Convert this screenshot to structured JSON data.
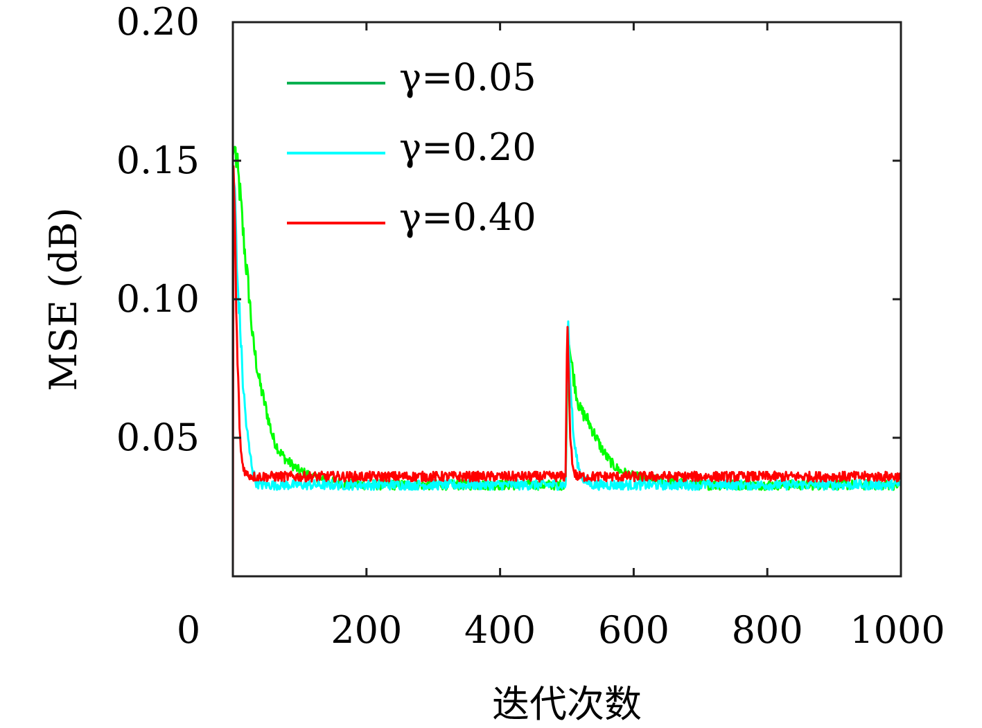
{
  "chart_data": {
    "type": "line",
    "title": "",
    "xlabel": "迭代次数",
    "ylabel": "MSE (dB)",
    "xlim": [
      0,
      1000
    ],
    "ylim": [
      0,
      0.2
    ],
    "xticks": [
      0,
      200,
      400,
      600,
      800,
      1000
    ],
    "xtick_labels": [
      "0",
      "200",
      "400",
      "600",
      "800",
      "1000"
    ],
    "yticks": [
      0.05,
      0.1,
      0.15,
      0.2
    ],
    "ytick_labels": [
      "0.05",
      "0.10",
      "0.15",
      "0.20"
    ],
    "grid": false,
    "legend_position": "top-left",
    "series": [
      {
        "name": "γ=0.05",
        "color": "#00ff00",
        "legend_color": "#00b050",
        "x": [
          0,
          3,
          6,
          10,
          15,
          20,
          25,
          30,
          40,
          50,
          60,
          70,
          80,
          90,
          100,
          110,
          120,
          130,
          150,
          200,
          250,
          300,
          350,
          400,
          450,
          498,
          500,
          502,
          505,
          510,
          515,
          520,
          530,
          540,
          550,
          560,
          570,
          580,
          600,
          650,
          700,
          750,
          800,
          850,
          900,
          950,
          1000
        ],
        "y": [
          0.152,
          0.155,
          0.148,
          0.14,
          0.125,
          0.112,
          0.1,
          0.085,
          0.07,
          0.06,
          0.05,
          0.045,
          0.042,
          0.04,
          0.038,
          0.037,
          0.036,
          0.035,
          0.034,
          0.033,
          0.033,
          0.033,
          0.033,
          0.033,
          0.033,
          0.033,
          0.06,
          0.086,
          0.08,
          0.072,
          0.065,
          0.06,
          0.057,
          0.052,
          0.047,
          0.043,
          0.04,
          0.038,
          0.036,
          0.034,
          0.033,
          0.033,
          0.033,
          0.033,
          0.033,
          0.033,
          0.033
        ]
      },
      {
        "name": "γ=0.20",
        "color": "#00ffff",
        "legend_color": "#00ffff",
        "x": [
          0,
          3,
          6,
          10,
          15,
          20,
          25,
          30,
          35,
          40,
          50,
          60,
          80,
          100,
          150,
          200,
          250,
          300,
          350,
          400,
          450,
          498,
          500,
          502,
          505,
          510,
          515,
          520,
          525,
          530,
          540,
          560,
          600,
          650,
          700,
          750,
          800,
          850,
          900,
          950,
          1000
        ],
        "y": [
          0.145,
          0.14,
          0.11,
          0.095,
          0.07,
          0.055,
          0.045,
          0.038,
          0.034,
          0.033,
          0.033,
          0.033,
          0.033,
          0.033,
          0.033,
          0.033,
          0.033,
          0.033,
          0.033,
          0.033,
          0.033,
          0.033,
          0.07,
          0.092,
          0.07,
          0.05,
          0.042,
          0.037,
          0.035,
          0.034,
          0.033,
          0.033,
          0.033,
          0.033,
          0.033,
          0.033,
          0.033,
          0.033,
          0.033,
          0.033,
          0.033
        ]
      },
      {
        "name": "γ=0.40",
        "color": "#ff0000",
        "legend_color": "#ff0000",
        "x": [
          0,
          1,
          3,
          5,
          8,
          10,
          12,
          15,
          20,
          30,
          50,
          100,
          150,
          200,
          250,
          300,
          350,
          400,
          450,
          498,
          500,
          501,
          503,
          505,
          508,
          510,
          515,
          520,
          530,
          550,
          600,
          650,
          700,
          750,
          800,
          850,
          900,
          950,
          1000
        ],
        "y": [
          0.0,
          0.148,
          0.13,
          0.095,
          0.07,
          0.055,
          0.045,
          0.04,
          0.037,
          0.036,
          0.036,
          0.036,
          0.036,
          0.036,
          0.036,
          0.036,
          0.036,
          0.036,
          0.036,
          0.036,
          0.08,
          0.09,
          0.07,
          0.05,
          0.042,
          0.038,
          0.036,
          0.036,
          0.036,
          0.036,
          0.036,
          0.036,
          0.036,
          0.036,
          0.036,
          0.036,
          0.036,
          0.036,
          0.036
        ]
      }
    ]
  }
}
